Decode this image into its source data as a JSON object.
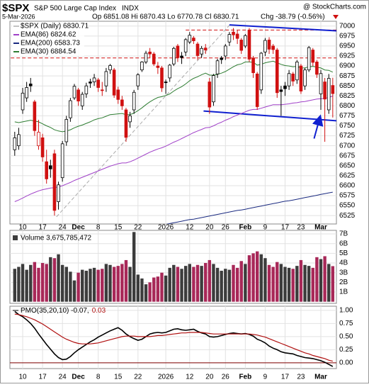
{
  "header": {
    "symbol": "$SPX",
    "title": "S&P 500 Large Cap Index",
    "exchange": "INDX",
    "source": "@ StockCharts.com",
    "date": "5-Mar-2026",
    "quote": "Op 6851.08 Hi 6870.43 Lo 6770.78 Cl 6830.71",
    "change": "Chg -38.79 (-0.56%)"
  },
  "chart_data": [
    {
      "type": "candlestick",
      "label": "$SPX (Daily) 6830.71",
      "categories": [
        null,
        null,
        "10",
        null,
        null,
        null,
        null,
        "17",
        null,
        null,
        null,
        null,
        "24",
        null,
        null,
        null,
        "Dec",
        null,
        null,
        null,
        null,
        "8",
        null,
        null,
        null,
        null,
        "15",
        null,
        null,
        null,
        null,
        "22",
        null,
        null,
        null,
        null,
        null,
        null,
        "2026",
        null,
        null,
        null,
        null,
        null,
        "12",
        null,
        null,
        null,
        null,
        "20",
        null,
        null,
        null,
        "26",
        null,
        null,
        null,
        null,
        "Feb",
        null,
        null,
        null,
        null,
        "9",
        null,
        null,
        null,
        null,
        "17",
        null,
        null,
        null,
        "23",
        null,
        null,
        null,
        null,
        "Mar",
        null,
        null,
        null
      ],
      "open": [
        6690,
        6700,
        6790,
        6820,
        6855,
        6810,
        6700,
        6720,
        6660,
        6650,
        6680,
        6560,
        6620,
        6710,
        6770,
        6820,
        6840,
        6800,
        6830,
        6860,
        6860,
        6865,
        6840,
        6850,
        6890,
        6890,
        6840,
        6815,
        6790,
        6760,
        6790,
        6850,
        6890,
        6910,
        6935,
        6930,
        6900,
        6895,
        6860,
        6870,
        6905,
        6950,
        6925,
        6935,
        6960,
        6970,
        6955,
        6930,
        6945,
        6860,
        6810,
        6880,
        6920,
        6925,
        6960,
        6985,
        6980,
        6965,
        6950,
        6990,
        6920,
        6880,
        6840,
        6935,
        6965,
        6950,
        6940,
        6840,
        6850,
        6850,
        6880,
        6865,
        6900,
        6850,
        6890,
        6940,
        6910,
        6830,
        6860,
        6790,
        6851.08
      ],
      "high": [
        6735,
        6745,
        6845,
        6860,
        6870,
        6815,
        6765,
        6730,
        6690,
        6665,
        6690,
        6610,
        6712,
        6775,
        6820,
        6855,
        6845,
        6835,
        6858,
        6868,
        6880,
        6870,
        6860,
        6895,
        6905,
        6895,
        6848,
        6825,
        6795,
        6785,
        6840,
        6882,
        6912,
        6938,
        6945,
        6935,
        6910,
        6900,
        6866,
        6905,
        6948,
        6955,
        6935,
        6970,
        6985,
        6975,
        6960,
        6950,
        6955,
        6870,
        6880,
        6918,
        6925,
        6955,
        6985,
        6995,
        6990,
        6970,
        6980,
        6995,
        6925,
        6885,
        6935,
        6970,
        6972,
        6955,
        6945,
        6850,
        6860,
        6890,
        6885,
        6915,
        6905,
        6895,
        6950,
        6945,
        6915,
        6890,
        6870,
        6880,
        6870.43
      ],
      "low": [
        6675,
        6690,
        6780,
        6810,
        6835,
        6725,
        6690,
        6660,
        6605,
        6620,
        6525,
        6540,
        6610,
        6700,
        6760,
        6815,
        6800,
        6790,
        6820,
        6845,
        6850,
        6835,
        6825,
        6835,
        6880,
        6820,
        6805,
        6790,
        6710,
        6745,
        6780,
        6840,
        6885,
        6905,
        6920,
        6900,
        6880,
        6835,
        6830,
        6860,
        6900,
        6910,
        6905,
        6925,
        6955,
        6955,
        6915,
        6920,
        6930,
        6780,
        6800,
        6870,
        6905,
        6915,
        6950,
        6965,
        6955,
        6930,
        6945,
        6910,
        6870,
        6790,
        6830,
        6925,
        6930,
        6930,
        6820,
        6775,
        6825,
        6840,
        6850,
        6855,
        6830,
        6840,
        6885,
        6900,
        6870,
        6790,
        6710,
        6780,
        6770.78
      ],
      "close": [
        6720,
        6728,
        6832,
        6846,
        6850,
        6738,
        6734,
        6672,
        6617,
        6642,
        6538,
        6602,
        6705,
        6766,
        6813,
        6849,
        6812,
        6829,
        6850,
        6857,
        6870,
        6846,
        6840,
        6886,
        6901,
        6827,
        6816,
        6800,
        6721,
        6775,
        6834,
        6878,
        6910,
        6932,
        6930,
        6905,
        6896,
        6845,
        6858,
        6902,
        6944,
        6921,
        6921,
        6966,
        6977,
        6963,
        6926,
        6944,
        6940,
        6797,
        6876,
        6913,
        6916,
        6950,
        6979,
        6978,
        6969,
        6939,
        6976,
        6917,
        6883,
        6798,
        6932,
        6964,
        6942,
        6941,
        6833,
        6836,
        6843,
        6881,
        6862,
        6910,
        6837,
        6890,
        6946,
        6909,
        6879,
        6881,
        6817,
        6869,
        6830.71
      ],
      "colors": {
        "up": "#000000",
        "down": "#d01010"
      },
      "series": [
        {
          "name": "EMA(86) 6824.62",
          "color": "#a040c8",
          "values": [
            6560,
            6564,
            6569,
            6574,
            6579,
            6583,
            6587,
            6590,
            6592,
            6594,
            6595,
            6597,
            6600,
            6604,
            6608,
            6613,
            6617,
            6621,
            6625,
            6629,
            6633,
            6637,
            6641,
            6645,
            6649,
            6652,
            6655,
            6657,
            6657,
            6660,
            6664,
            6669,
            6674,
            6679,
            6684,
            6688,
            6692,
            6695,
            6699,
            6704,
            6709,
            6713,
            6718,
            6723,
            6728,
            6733,
            6737,
            6741,
            6745,
            6746,
            6750,
            6755,
            6759,
            6764,
            6768,
            6773,
            6777,
            6781,
            6785,
            6789,
            6791,
            6791,
            6794,
            6797,
            6800,
            6803,
            6803,
            6803,
            6804,
            6805,
            6807,
            6808,
            6810,
            6811,
            6813,
            6815,
            6817,
            6818,
            6819,
            6821,
            6824.62
          ]
        },
        {
          "name": "EMA(200) 6583.73",
          "color": "#1a2a80",
          "values": [
            null,
            null,
            null,
            null,
            null,
            null,
            null,
            null,
            null,
            null,
            null,
            null,
            null,
            null,
            null,
            null,
            null,
            null,
            null,
            null,
            null,
            null,
            null,
            null,
            null,
            null,
            null,
            null,
            null,
            null,
            null,
            null,
            null,
            null,
            null,
            null,
            null,
            null,
            6503,
            6505,
            6507,
            6509,
            6511,
            6513,
            6515,
            6516,
            6518,
            6520,
            6522,
            6524,
            6526,
            6528,
            6530,
            6532,
            6534,
            6536,
            6538,
            6539,
            6541,
            6543,
            6545,
            6547,
            6549,
            6551,
            6553,
            6555,
            6557,
            6559,
            6561,
            6562,
            6564,
            6566,
            6568,
            6570,
            6572,
            6574,
            6576,
            6578,
            6580,
            6582,
            6583.73
          ]
        },
        {
          "name": "EMA(30) 6884.54",
          "color": "#2e7d32",
          "values": [
            6760,
            6758,
            6760,
            6762,
            6764,
            6762,
            6760,
            6755,
            6750,
            6746,
            6740,
            6737,
            6735,
            6737,
            6740,
            6745,
            6749,
            6752,
            6756,
            6760,
            6765,
            6768,
            6770,
            6774,
            6778,
            6779,
            6780,
            6781,
            6778,
            6778,
            6782,
            6788,
            6795,
            6803,
            6810,
            6816,
            6821,
            6823,
            6826,
            6830,
            6837,
            6843,
            6848,
            6855,
            6863,
            6869,
            6873,
            6878,
            6882,
            6877,
            6877,
            6879,
            6882,
            6886,
            6892,
            6898,
            6903,
            6905,
            6910,
            6910,
            6909,
            6902,
            6904,
            6908,
            6910,
            6912,
            6908,
            6904,
            6901,
            6900,
            6898,
            6899,
            6895,
            6895,
            6898,
            6899,
            6897,
            6895,
            6890,
            6889,
            6884.54
          ]
        }
      ],
      "annotations": [
        {
          "color": "#d01010",
          "dash": true,
          "points": [
            [
              43,
              6990
            ],
            [
              88,
              6990
            ]
          ]
        },
        {
          "color": "#d01010",
          "dash": true,
          "points": [
            [
              -1,
              6920
            ],
            [
              88,
              6920
            ]
          ]
        },
        {
          "color": "#aaaaaa",
          "dash": true,
          "points": [
            [
              10.5,
              6522
            ],
            [
              54,
              7002
            ]
          ]
        },
        {
          "color": "#1020d0",
          "dash": false,
          "points": [
            [
              54,
              7003
            ],
            [
              88,
              6984
            ]
          ]
        },
        {
          "color": "#1020d0",
          "dash": false,
          "points": [
            [
              47.5,
              6787
            ],
            [
              81.9,
              6762
            ]
          ]
        },
        {
          "color": "#1020d0",
          "dash": false,
          "arrow": true,
          "points": [
            [
              75.3,
              6718
            ],
            [
              76.6,
              6765
            ]
          ]
        }
      ],
      "ylim": [
        6504,
        7012
      ],
      "yticks": [
        6525,
        6550,
        6575,
        6600,
        6625,
        6650,
        6675,
        6700,
        6725,
        6750,
        6775,
        6800,
        6825,
        6850,
        6875,
        6900,
        6925,
        6950,
        6975,
        7000
      ],
      "grid": true
    },
    {
      "type": "bar",
      "title": "Volume 3,675,785,472",
      "colors": {
        "up": "#3c3c3c",
        "down": "#a82858"
      },
      "values": [
        3.4,
        3.6,
        3.9,
        3.3,
        3.8,
        4.1,
        3.5,
        4.0,
        3.9,
        4.6,
        4.5,
        4.9,
        3.8,
        3.6,
        3.1,
        2.2,
        3.0,
        3.3,
        3.2,
        3.4,
        3.5,
        3.3,
        3.4,
        3.9,
        3.8,
        3.6,
        3.7,
        3.9,
        4.3,
        3.6,
        7.2,
        2.8,
        2.4,
        1.8,
        2.0,
        2.5,
        2.6,
        3.0,
        2.7,
        3.5,
        3.8,
        3.6,
        3.4,
        3.7,
        3.9,
        3.6,
        3.8,
        3.7,
        4.0,
        4.3,
        3.9,
        3.5,
        3.2,
        3.4,
        3.3,
        3.8,
        3.5,
        4.2,
        3.9,
        4.8,
        5.0,
        5.2,
        4.9,
        4.5,
        3.8,
        3.6,
        4.1,
        3.9,
        3.6,
        3.5,
        3.4,
        3.7,
        4.3,
        3.8,
        3.7,
        3.5,
        4.6,
        4.4,
        4.7,
        3.9,
        3.675785472
      ],
      "ylim": [
        -0.17,
        7.37
      ],
      "yticks": [
        {
          "value": 1,
          "label": "1B"
        },
        {
          "value": 2,
          "label": "2B"
        },
        {
          "value": 3,
          "label": "3B"
        },
        {
          "value": 4,
          "label": "4B"
        },
        {
          "value": 5,
          "label": "5B"
        },
        {
          "value": 6,
          "label": "6B"
        },
        {
          "value": 7,
          "label": "7B"
        }
      ],
      "grid": true
    },
    {
      "type": "line",
      "series": [
        {
          "name": "PMO(35,20,10) -0.07,",
          "color": "#000000",
          "values": [
            0.98,
            0.92,
            0.88,
            0.82,
            0.75,
            0.66,
            0.55,
            0.45,
            0.35,
            0.26,
            0.17,
            0.1,
            0.06,
            0.07,
            0.12,
            0.19,
            0.25,
            0.3,
            0.35,
            0.4,
            0.44,
            0.49,
            0.53,
            0.57,
            0.61,
            0.64,
            0.67,
            0.62,
            0.55,
            0.5,
            0.46,
            0.43,
            0.45,
            0.5,
            0.55,
            0.57,
            0.58,
            0.57,
            0.58,
            0.61,
            0.64,
            0.65,
            0.63,
            0.62,
            0.63,
            0.64,
            0.6,
            0.57,
            0.55,
            0.5,
            0.49,
            0.5,
            0.52,
            0.54,
            0.56,
            0.57,
            0.56,
            0.55,
            0.56,
            0.54,
            0.51,
            0.45,
            0.42,
            0.38,
            0.32,
            0.28,
            0.25,
            0.21,
            0.19,
            0.18,
            0.17,
            0.14,
            0.12,
            0.1,
            0.09,
            0.08,
            0.06,
            0.04,
            0.01,
            -0.03,
            -0.07
          ]
        },
        {
          "name": "0.03",
          "color": "#b01010",
          "values": [
            0.93,
            0.92,
            0.9,
            0.88,
            0.85,
            0.82,
            0.78,
            0.74,
            0.69,
            0.64,
            0.59,
            0.54,
            0.49,
            0.45,
            0.42,
            0.39,
            0.37,
            0.36,
            0.36,
            0.36,
            0.37,
            0.38,
            0.4,
            0.42,
            0.44,
            0.46,
            0.48,
            0.5,
            0.51,
            0.51,
            0.51,
            0.5,
            0.5,
            0.5,
            0.5,
            0.51,
            0.52,
            0.52,
            0.53,
            0.54,
            0.55,
            0.56,
            0.57,
            0.57,
            0.58,
            0.58,
            0.58,
            0.58,
            0.57,
            0.56,
            0.55,
            0.55,
            0.55,
            0.55,
            0.55,
            0.55,
            0.55,
            0.55,
            0.55,
            0.55,
            0.54,
            0.53,
            0.51,
            0.49,
            0.46,
            0.43,
            0.4,
            0.37,
            0.34,
            0.31,
            0.28,
            0.25,
            0.22,
            0.19,
            0.17,
            0.14,
            0.12,
            0.1,
            0.08,
            0.05,
            0.03
          ]
        }
      ],
      "hlines": [
        {
          "value": 0,
          "color": "#800000"
        }
      ],
      "ylim": [
        -0.11,
        1.08
      ],
      "yticks": [
        {
          "value": 0,
          "label": "0.00"
        },
        {
          "value": 0.25,
          "label": "0.25"
        },
        {
          "value": 0.5,
          "label": "0.50"
        },
        {
          "value": 0.75,
          "label": "0.75"
        },
        {
          "value": 1,
          "label": "1.00"
        }
      ],
      "grid": true
    }
  ]
}
